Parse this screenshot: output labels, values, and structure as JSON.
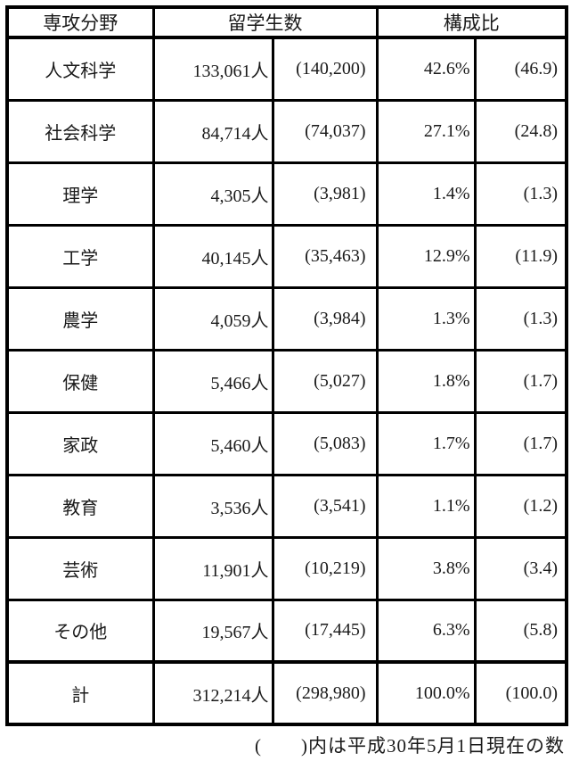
{
  "table": {
    "headers": {
      "field": "専攻分野",
      "students": "留学生数",
      "ratio": "構成比"
    },
    "rows": [
      {
        "field": "人文科学",
        "students": "133,061人",
        "students_paren": "(140,200)",
        "ratio": "42.6%",
        "ratio_paren": "(46.9)"
      },
      {
        "field": "社会科学",
        "students": "84,714人",
        "students_paren": "(74,037)",
        "ratio": "27.1%",
        "ratio_paren": "(24.8)"
      },
      {
        "field": "理学",
        "students": "4,305人",
        "students_paren": "(3,981)",
        "ratio": "1.4%",
        "ratio_paren": "(1.3)"
      },
      {
        "field": "工学",
        "students": "40,145人",
        "students_paren": "(35,463)",
        "ratio": "12.9%",
        "ratio_paren": "(11.9)"
      },
      {
        "field": "農学",
        "students": "4,059人",
        "students_paren": "(3,984)",
        "ratio": "1.3%",
        "ratio_paren": "(1.3)"
      },
      {
        "field": "保健",
        "students": "5,466人",
        "students_paren": "(5,027)",
        "ratio": "1.8%",
        "ratio_paren": "(1.7)"
      },
      {
        "field": "家政",
        "students": "5,460人",
        "students_paren": "(5,083)",
        "ratio": "1.7%",
        "ratio_paren": "(1.7)"
      },
      {
        "field": "教育",
        "students": "3,536人",
        "students_paren": "(3,541)",
        "ratio": "1.1%",
        "ratio_paren": "(1.2)"
      },
      {
        "field": "芸術",
        "students": "11,901人",
        "students_paren": "(10,219)",
        "ratio": "3.8%",
        "ratio_paren": "(3.4)"
      },
      {
        "field": "その他",
        "students": "19,567人",
        "students_paren": "(17,445)",
        "ratio": "6.3%",
        "ratio_paren": "(5.8)"
      },
      {
        "field": "計",
        "students": "312,214人",
        "students_paren": "(298,980)",
        "ratio": "100.0%",
        "ratio_paren": "(100.0)"
      }
    ]
  },
  "note": "(　　)内は平成30年5月1日現在の数"
}
